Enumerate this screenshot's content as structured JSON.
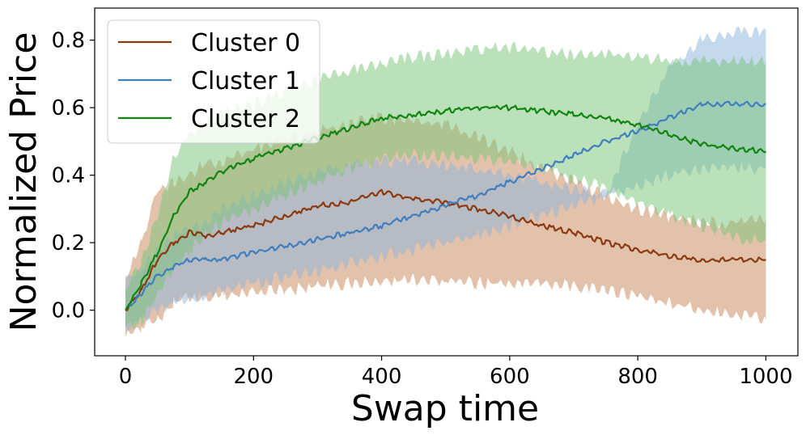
{
  "chart_data": {
    "type": "line",
    "title": "",
    "xlabel": "Swap time",
    "ylabel": "Normalized Price",
    "xlim": [
      -48,
      1050
    ],
    "ylim": [
      -0.135,
      0.895
    ],
    "xticks": [
      0,
      200,
      400,
      600,
      800,
      1000
    ],
    "xtick_labels": [
      "0",
      "200",
      "400",
      "600",
      "800",
      "1000"
    ],
    "yticks": [
      0.0,
      0.2,
      0.4,
      0.6,
      0.8
    ],
    "ytick_labels": [
      "0.0",
      "0.2",
      "0.4",
      "0.6",
      "0.8"
    ],
    "grid": false,
    "legend_position": "top-left",
    "x": [
      0,
      25,
      50,
      75,
      100,
      125,
      150,
      200,
      250,
      300,
      350,
      400,
      450,
      500,
      550,
      600,
      650,
      700,
      750,
      800,
      850,
      900,
      950,
      1000
    ],
    "series": [
      {
        "name": "Cluster 0",
        "color": "#8b3a0f",
        "values": [
          0.0,
          0.06,
          0.15,
          0.2,
          0.23,
          0.22,
          0.23,
          0.25,
          0.28,
          0.31,
          0.32,
          0.35,
          0.33,
          0.32,
          0.3,
          0.28,
          0.25,
          0.23,
          0.2,
          0.18,
          0.16,
          0.15,
          0.15,
          0.15
        ],
        "band_upper": [
          0.1,
          0.2,
          0.35,
          0.38,
          0.4,
          0.44,
          0.44,
          0.48,
          0.5,
          0.53,
          0.55,
          0.57,
          0.56,
          0.55,
          0.51,
          0.47,
          0.42,
          0.38,
          0.34,
          0.3,
          0.28,
          0.26,
          0.26,
          0.27
        ],
        "band_lower": [
          -0.08,
          -0.05,
          -0.03,
          0.02,
          0.04,
          0.03,
          0.04,
          0.05,
          0.06,
          0.07,
          0.08,
          0.09,
          0.09,
          0.09,
          0.08,
          0.08,
          0.08,
          0.07,
          0.06,
          0.04,
          0.02,
          0.0,
          -0.01,
          -0.03
        ],
        "band_color": "#c8855a"
      },
      {
        "name": "Cluster 1",
        "color": "#3f7ebf",
        "values": [
          0.0,
          0.05,
          0.1,
          0.13,
          0.15,
          0.15,
          0.15,
          0.17,
          0.19,
          0.21,
          0.23,
          0.25,
          0.28,
          0.31,
          0.34,
          0.38,
          0.42,
          0.46,
          0.5,
          0.53,
          0.57,
          0.61,
          0.61,
          0.61
        ],
        "band_upper": [
          0.08,
          0.12,
          0.18,
          0.22,
          0.24,
          0.26,
          0.3,
          0.34,
          0.38,
          0.41,
          0.43,
          0.44,
          0.44,
          0.43,
          0.42,
          0.4,
          0.38,
          0.36,
          0.34,
          0.55,
          0.72,
          0.8,
          0.82,
          0.83
        ],
        "band_lower": [
          -0.05,
          -0.03,
          0.0,
          0.02,
          0.03,
          0.04,
          0.06,
          0.08,
          0.1,
          0.12,
          0.14,
          0.16,
          0.18,
          0.2,
          0.22,
          0.25,
          0.28,
          0.31,
          0.34,
          0.37,
          0.4,
          0.42,
          0.42,
          0.42
        ],
        "band_color": "#8cb4db"
      },
      {
        "name": "Cluster 2",
        "color": "#108510",
        "values": [
          0.0,
          0.08,
          0.17,
          0.28,
          0.35,
          0.38,
          0.41,
          0.45,
          0.48,
          0.51,
          0.54,
          0.57,
          0.58,
          0.59,
          0.6,
          0.6,
          0.59,
          0.58,
          0.57,
          0.55,
          0.52,
          0.49,
          0.48,
          0.47
        ],
        "band_upper": [
          0.06,
          0.15,
          0.28,
          0.45,
          0.52,
          0.55,
          0.58,
          0.61,
          0.65,
          0.68,
          0.71,
          0.73,
          0.75,
          0.76,
          0.77,
          0.78,
          0.77,
          0.76,
          0.76,
          0.75,
          0.74,
          0.74,
          0.74,
          0.74
        ],
        "band_lower": [
          -0.05,
          -0.03,
          0.05,
          0.12,
          0.18,
          0.22,
          0.26,
          0.3,
          0.34,
          0.38,
          0.42,
          0.45,
          0.46,
          0.46,
          0.45,
          0.44,
          0.42,
          0.39,
          0.36,
          0.32,
          0.28,
          0.25,
          0.22,
          0.2
        ],
        "band_color": "#77c477"
      }
    ]
  }
}
